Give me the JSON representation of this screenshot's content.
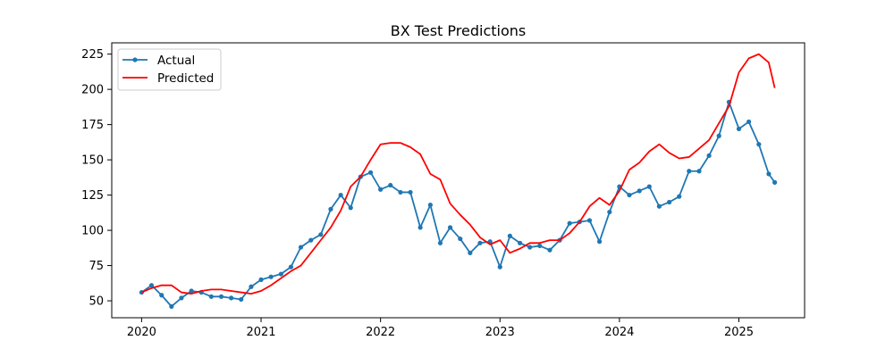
{
  "chart_data": {
    "type": "line",
    "title": "BX Test Predictions",
    "xlabel": "",
    "ylabel": "",
    "xlim": [
      2019.75,
      2025.55
    ],
    "ylim": [
      38,
      233
    ],
    "x_ticks": [
      2020,
      2021,
      2022,
      2023,
      2024,
      2025
    ],
    "y_ticks": [
      50,
      75,
      100,
      125,
      150,
      175,
      200,
      225
    ],
    "grid": false,
    "legend": "top-left",
    "series": [
      {
        "name": "Actual",
        "color": "#1f77b4",
        "marker": "circle",
        "x": [
          2020.0,
          2020.083,
          2020.167,
          2020.25,
          2020.333,
          2020.417,
          2020.5,
          2020.583,
          2020.667,
          2020.75,
          2020.833,
          2020.917,
          2021.0,
          2021.083,
          2021.167,
          2021.25,
          2021.333,
          2021.417,
          2021.5,
          2021.583,
          2021.667,
          2021.75,
          2021.833,
          2021.917,
          2022.0,
          2022.083,
          2022.167,
          2022.25,
          2022.333,
          2022.417,
          2022.5,
          2022.583,
          2022.667,
          2022.75,
          2022.833,
          2022.917,
          2023.0,
          2023.083,
          2023.167,
          2023.25,
          2023.333,
          2023.417,
          2023.5,
          2023.583,
          2023.667,
          2023.75,
          2023.833,
          2023.917,
          2024.0,
          2024.083,
          2024.167,
          2024.25,
          2024.333,
          2024.417,
          2024.5,
          2024.583,
          2024.667,
          2024.75,
          2024.833,
          2024.917,
          2025.0,
          2025.083,
          2025.167,
          2025.25,
          2025.3
        ],
        "y": [
          56,
          61,
          54,
          46,
          52,
          57,
          56,
          53,
          53,
          52,
          51,
          60,
          65,
          67,
          69,
          74,
          88,
          93,
          97,
          115,
          125,
          116,
          138,
          141,
          129,
          132,
          127,
          127,
          102,
          118,
          91,
          102,
          94,
          84,
          91,
          92,
          74,
          96,
          91,
          88,
          89,
          86,
          93,
          105,
          106,
          107,
          92,
          113,
          131,
          125,
          128,
          131,
          117,
          120,
          124,
          142,
          142,
          153,
          167,
          191,
          172,
          177,
          161,
          140,
          134
        ]
      },
      {
        "name": "Predicted",
        "color": "#ff0000",
        "marker": "none",
        "x": [
          2020.0,
          2020.083,
          2020.167,
          2020.25,
          2020.333,
          2020.417,
          2020.5,
          2020.583,
          2020.667,
          2020.75,
          2020.833,
          2020.917,
          2021.0,
          2021.083,
          2021.167,
          2021.25,
          2021.333,
          2021.417,
          2021.5,
          2021.583,
          2021.667,
          2021.75,
          2021.833,
          2021.917,
          2022.0,
          2022.083,
          2022.167,
          2022.25,
          2022.333,
          2022.417,
          2022.5,
          2022.583,
          2022.667,
          2022.75,
          2022.833,
          2022.917,
          2023.0,
          2023.083,
          2023.167,
          2023.25,
          2023.333,
          2023.417,
          2023.5,
          2023.583,
          2023.667,
          2023.75,
          2023.833,
          2023.917,
          2024.0,
          2024.083,
          2024.167,
          2024.25,
          2024.333,
          2024.417,
          2024.5,
          2024.583,
          2024.667,
          2024.75,
          2024.833,
          2024.917,
          2025.0,
          2025.083,
          2025.167,
          2025.25,
          2025.3
        ],
        "y": [
          56,
          59,
          61,
          61,
          56,
          55,
          57,
          58,
          58,
          57,
          56,
          55,
          57,
          61,
          66,
          71,
          75,
          84,
          93,
          102,
          114,
          131,
          138,
          150,
          161,
          162,
          162,
          159,
          154,
          140,
          136,
          119,
          111,
          104,
          95,
          90,
          93,
          84,
          87,
          91,
          91,
          93,
          93,
          98,
          106,
          117,
          123,
          118,
          128,
          143,
          148,
          156,
          161,
          155,
          151,
          152,
          158,
          164,
          176,
          188,
          212,
          222,
          225,
          219,
          201
        ]
      }
    ]
  }
}
